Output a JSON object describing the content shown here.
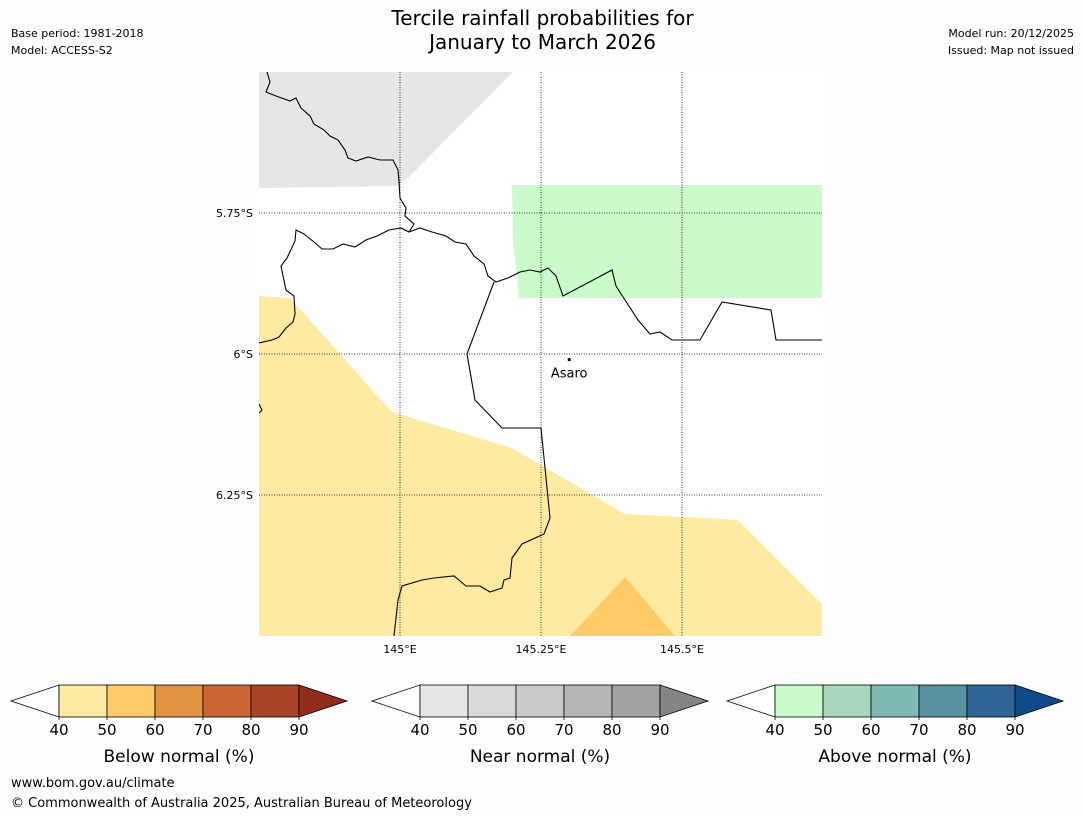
{
  "title": {
    "line1": "Tercile rainfall probabilities for",
    "line2": "January to March 2026"
  },
  "meta_left": {
    "base_period": "Base period: 1981-2018",
    "model": "Model: ACCESS-S2"
  },
  "meta_right": {
    "model_run": "Model run: 20/12/2025",
    "issued": "Issued: Map not issued"
  },
  "map": {
    "latitudes": [
      {
        "label": "5.75°S",
        "value": -5.75
      },
      {
        "label": "6°S",
        "value": -6.0
      },
      {
        "label": "6.25°S",
        "value": -6.25
      }
    ],
    "longitudes": [
      {
        "label": "145°E",
        "value": 145.0
      },
      {
        "label": "145.25°E",
        "value": 145.25
      },
      {
        "label": "145.5°E",
        "value": 145.5
      }
    ],
    "places": [
      {
        "name": "Asaro",
        "lon": 145.3,
        "lat": -6.01
      }
    ]
  },
  "colors": {
    "below": [
      "#ffffff",
      "#feeaa0",
      "#fecb67",
      "#e29443",
      "#cc6434",
      "#aa4226",
      "#922c1c"
    ],
    "near": [
      "#ffffff",
      "#e6e6e6",
      "#d9d9d9",
      "#cacaca",
      "#b5b5b5",
      "#a2a2a2",
      "#858585"
    ],
    "above": [
      "#ffffff",
      "#c9fcca",
      "#a7d8bd",
      "#80b8b2",
      "#5892a1",
      "#2e6496",
      "#0e4b8b"
    ],
    "map_near_fill": "#e6e6e6",
    "map_above_fill": "#c9fcca",
    "map_below_50_fill": "#feeaa0",
    "map_below_60_fill": "#fecb67"
  },
  "colorbars": {
    "ticks": [
      "40",
      "50",
      "60",
      "70",
      "80",
      "90"
    ],
    "below_label": "Below normal (%)",
    "near_label": "Near normal (%)",
    "above_label": "Above normal (%)"
  },
  "footer": {
    "url": "www.bom.gov.au/climate",
    "copyright": "© Commonwealth of Australia 2025, Australian Bureau of Meteorology"
  }
}
